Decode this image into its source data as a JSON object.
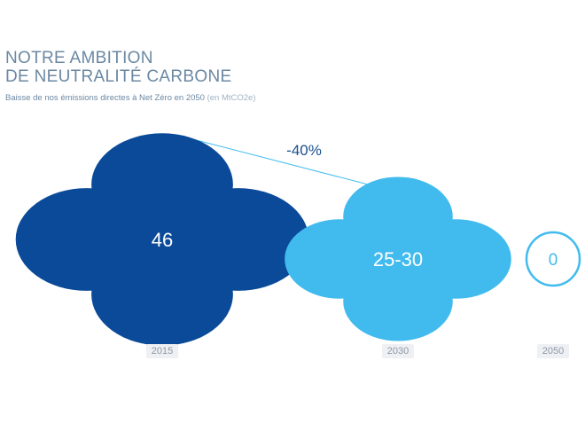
{
  "header": {
    "title_line1": "NOTRE AMBITION",
    "title_line2": "DE NEUTRALITÉ CARBONE",
    "subtitle": "Baisse de nos émissions directes à Net Zéro en 2050",
    "subtitle_unit": "(en MtCO2e)"
  },
  "chart_data": {
    "type": "bubble",
    "title": "NOTRE AMBITION DE NEUTRALITÉ CARBONE",
    "subtitle": "Baisse de nos émissions directes à Net Zéro en 2050 (en MtCO2e)",
    "unit": "MtCO2e",
    "categories": [
      "2015",
      "2030",
      "2050"
    ],
    "values": [
      46,
      27.5,
      0
    ],
    "value_labels": [
      "46",
      "25-30",
      "0"
    ],
    "range_2030": [
      25,
      30
    ],
    "annotation": {
      "text": "-40%",
      "from": "2015",
      "to": "2030"
    },
    "colors": {
      "2015": "#0a4a99",
      "2030": "#41bbee",
      "2050": "#41bbee"
    },
    "style": {
      "2050": "outline"
    }
  }
}
